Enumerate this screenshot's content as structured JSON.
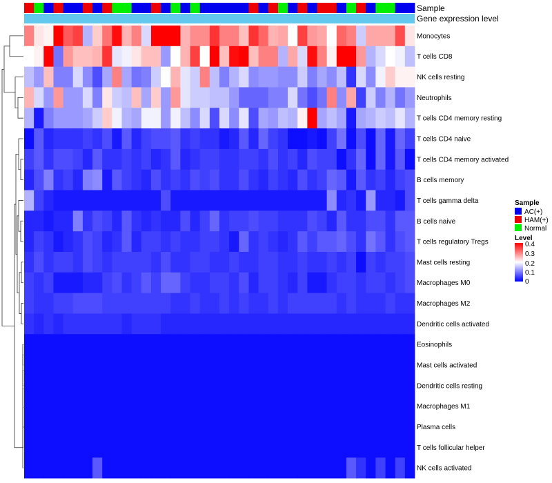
{
  "chart_data": {
    "type": "heatmap",
    "title": "",
    "annotation_labels": [
      "Sample",
      "Gene expression level"
    ],
    "sample_groups": [
      {
        "name": "AC(+)",
        "color": "#0000ee"
      },
      {
        "name": "HAM(+)",
        "color": "#ee0000"
      },
      {
        "name": "Normal",
        "color": "#00ee00"
      }
    ],
    "sample_annotation": [
      1,
      2,
      0,
      1,
      0,
      0,
      1,
      0,
      1,
      2,
      2,
      0,
      0,
      1,
      0,
      2,
      0,
      2,
      0,
      0,
      0,
      0,
      0,
      1,
      0,
      1,
      2,
      0,
      1,
      0,
      1,
      1,
      0,
      2,
      1,
      0,
      2,
      2,
      0,
      0
    ],
    "expression_bar_color": "#63c8ee",
    "rows": [
      "Monocytes",
      "T cells CD8",
      "NK cells resting",
      "Neutrophils",
      "T cells CD4 memory resting",
      "T cells CD4 naive",
      "T cells CD4 memory activated",
      "B cells memory",
      "T cells gamma delta",
      "B cells naive",
      "T cells regulatory  Tregs",
      "Mast cells resting",
      "Macrophages M0",
      "Macrophages M2",
      "Dendritic cells activated",
      "Eosinophils",
      "Mast cells activated",
      "Dendritic cells resting",
      "Macrophages M1",
      "Plasma cells",
      "T cells follicular helper",
      "NK cells activated"
    ],
    "values": [
      [
        0.3,
        0.22,
        0.21,
        0.41,
        0.33,
        0.35,
        0.14,
        0.24,
        0.31,
        0.39,
        0.26,
        0.3,
        0.17,
        0.4,
        0.41,
        0.41,
        0.26,
        0.29,
        0.29,
        0.36,
        0.3,
        0.3,
        0.25,
        0.36,
        0.32,
        0.26,
        0.27,
        0.2,
        0.35,
        0.28,
        0.27,
        0.2,
        0.32,
        0.3,
        0.16,
        0.27,
        0.27,
        0.27,
        0.34,
        0.22
      ],
      [
        0.2,
        0.21,
        0.41,
        0.09,
        0.28,
        0.25,
        0.25,
        0.26,
        0.36,
        0.18,
        0.19,
        0.22,
        0.25,
        0.25,
        0.12,
        0.2,
        0.26,
        0.35,
        0.2,
        0.42,
        0.25,
        0.39,
        0.41,
        0.25,
        0.3,
        0.3,
        0.14,
        0.27,
        0.17,
        0.39,
        0.3,
        0.21,
        0.4,
        0.4,
        0.28,
        0.14,
        0.17,
        0.2,
        0.19,
        0.15
      ],
      [
        0.15,
        0.12,
        0.25,
        0.1,
        0.1,
        0.17,
        0.11,
        0.06,
        0.13,
        0.3,
        0.13,
        0.09,
        0.1,
        0.16,
        0.2,
        0.26,
        0.18,
        0.16,
        0.3,
        0.15,
        0.1,
        0.14,
        0.17,
        0.11,
        0.12,
        0.12,
        0.11,
        0.11,
        0.16,
        0.1,
        0.13,
        0.11,
        0.15,
        0.04,
        0.17,
        0.11,
        0.19,
        0.24,
        0.21,
        0.21
      ],
      [
        0.26,
        0.17,
        0.12,
        0.28,
        0.12,
        0.12,
        0.17,
        0.1,
        0.22,
        0.16,
        0.15,
        0.25,
        0.13,
        0.24,
        0.12,
        0.28,
        0.18,
        0.16,
        0.16,
        0.15,
        0.15,
        0.12,
        0.08,
        0.08,
        0.08,
        0.1,
        0.1,
        0.17,
        0.09,
        0.06,
        0.09,
        0.3,
        0.11,
        0.27,
        0.05,
        0.16,
        0.1,
        0.14,
        0.09,
        0.12
      ],
      [
        0.14,
        0.02,
        0.1,
        0.12,
        0.12,
        0.12,
        0.13,
        0.16,
        0.24,
        0.19,
        0.14,
        0.13,
        0.19,
        0.19,
        0.12,
        0.19,
        0.15,
        0.11,
        0.17,
        0.06,
        0.17,
        0.11,
        0.18,
        0.06,
        0.13,
        0.12,
        0.15,
        0.14,
        0.21,
        0.4,
        0.13,
        0.15,
        0.13,
        0.02,
        0.13,
        0.14,
        0.16,
        0.15,
        0.18,
        0.14
      ],
      [
        0.01,
        0.07,
        0.03,
        0.04,
        0.04,
        0.04,
        0.05,
        0.04,
        0.06,
        0.02,
        0.07,
        0.03,
        0.05,
        0.06,
        0.06,
        0.07,
        0.04,
        0.05,
        0.04,
        0.04,
        0.02,
        0.03,
        0.07,
        0.03,
        0.08,
        0.05,
        0.04,
        0.01,
        0.01,
        0.02,
        0.01,
        0.05,
        0.09,
        0.01,
        0.06,
        0.01,
        0.08,
        0.02,
        0.08,
        0.05
      ],
      [
        0.05,
        0.07,
        0.04,
        0.06,
        0.06,
        0.05,
        0.03,
        0.07,
        0.04,
        0.04,
        0.05,
        0.04,
        0.05,
        0.03,
        0.04,
        0.07,
        0.03,
        0.04,
        0.05,
        0.05,
        0.04,
        0.04,
        0.05,
        0.05,
        0.04,
        0.06,
        0.04,
        0.05,
        0.03,
        0.06,
        0.05,
        0.05,
        0.01,
        0.04,
        0.08,
        0.01,
        0.08,
        0.02,
        0.07,
        0.01
      ],
      [
        0.03,
        0.06,
        0.1,
        0.04,
        0.05,
        0.03,
        0.1,
        0.11,
        0.02,
        0.07,
        0.05,
        0.04,
        0.03,
        0.06,
        0.04,
        0.05,
        0.04,
        0.06,
        0.05,
        0.06,
        0.04,
        0.04,
        0.06,
        0.04,
        0.03,
        0.05,
        0.04,
        0.03,
        0.06,
        0.04,
        0.05,
        0.08,
        0.07,
        0.02,
        0.07,
        0.04,
        0.05,
        0.03,
        0.05,
        0.06
      ],
      [
        0.14,
        0.05,
        0.03,
        0.02,
        0.02,
        0.02,
        0.02,
        0.02,
        0.02,
        0.02,
        0.02,
        0.02,
        0.02,
        0.02,
        0.06,
        0.02,
        0.02,
        0.02,
        0.02,
        0.02,
        0.02,
        0.02,
        0.02,
        0.02,
        0.02,
        0.02,
        0.02,
        0.02,
        0.02,
        0.02,
        0.02,
        0.11,
        0.03,
        0.04,
        0.02,
        0.12,
        0.03,
        0.03,
        0.02,
        0.06
      ],
      [
        0.03,
        0.03,
        0.02,
        0.03,
        0.03,
        0.1,
        0.04,
        0.06,
        0.05,
        0.03,
        0.07,
        0.04,
        0.03,
        0.04,
        0.03,
        0.03,
        0.06,
        0.03,
        0.05,
        0.08,
        0.04,
        0.05,
        0.05,
        0.06,
        0.05,
        0.05,
        0.04,
        0.04,
        0.04,
        0.06,
        0.05,
        0.03,
        0.07,
        0.04,
        0.04,
        0.06,
        0.06,
        0.04,
        0.07,
        0.07
      ],
      [
        0.03,
        0.05,
        0.04,
        0.02,
        0.03,
        0.04,
        0.06,
        0.05,
        0.03,
        0.04,
        0.07,
        0.03,
        0.05,
        0.05,
        0.04,
        0.05,
        0.04,
        0.04,
        0.05,
        0.05,
        0.04,
        0.02,
        0.08,
        0.04,
        0.05,
        0.04,
        0.03,
        0.04,
        0.07,
        0.05,
        0.07,
        0.07,
        0.08,
        0.06,
        0.04,
        0.09,
        0.07,
        0.04,
        0.06,
        0.07
      ],
      [
        0.04,
        0.06,
        0.04,
        0.05,
        0.05,
        0.04,
        0.06,
        0.05,
        0.04,
        0.05,
        0.05,
        0.05,
        0.05,
        0.04,
        0.06,
        0.04,
        0.04,
        0.05,
        0.05,
        0.04,
        0.04,
        0.05,
        0.04,
        0.04,
        0.05,
        0.05,
        0.04,
        0.04,
        0.05,
        0.04,
        0.04,
        0.05,
        0.04,
        0.05,
        0.01,
        0.05,
        0.04,
        0.05,
        0.05,
        0.06
      ],
      [
        0.05,
        0.04,
        0.05,
        0.02,
        0.02,
        0.02,
        0.03,
        0.03,
        0.05,
        0.06,
        0.04,
        0.05,
        0.07,
        0.05,
        0.08,
        0.08,
        0.05,
        0.04,
        0.04,
        0.05,
        0.05,
        0.04,
        0.06,
        0.03,
        0.05,
        0.05,
        0.04,
        0.03,
        0.05,
        0.02,
        0.02,
        0.04,
        0.05,
        0.05,
        0.04,
        0.05,
        0.05,
        0.04,
        0.05,
        0.06
      ],
      [
        0.05,
        0.04,
        0.04,
        0.05,
        0.05,
        0.06,
        0.06,
        0.06,
        0.05,
        0.05,
        0.05,
        0.05,
        0.05,
        0.05,
        0.05,
        0.04,
        0.04,
        0.05,
        0.04,
        0.04,
        0.05,
        0.04,
        0.05,
        0.04,
        0.04,
        0.05,
        0.04,
        0.05,
        0.05,
        0.05,
        0.05,
        0.05,
        0.04,
        0.05,
        0.04,
        0.04,
        0.04,
        0.05,
        0.04,
        0.04
      ],
      [
        0.04,
        0.03,
        0.04,
        0.03,
        0.04,
        0.04,
        0.04,
        0.04,
        0.04,
        0.04,
        0.03,
        0.04,
        0.04,
        0.04,
        0.03,
        0.03,
        0.03,
        0.03,
        0.03,
        0.03,
        0.03,
        0.03,
        0.03,
        0.03,
        0.03,
        0.03,
        0.03,
        0.03,
        0.03,
        0.03,
        0.03,
        0.03,
        0.03,
        0.03,
        0.03,
        0.03,
        0.03,
        0.03,
        0.03,
        0.03
      ],
      [
        0.01,
        0.01,
        0.01,
        0.01,
        0.01,
        0.01,
        0.01,
        0.01,
        0.01,
        0.01,
        0.01,
        0.01,
        0.01,
        0.01,
        0.01,
        0.01,
        0.01,
        0.01,
        0.01,
        0.01,
        0.01,
        0.01,
        0.01,
        0.01,
        0.01,
        0.01,
        0.01,
        0.01,
        0.01,
        0.01,
        0.01,
        0.01,
        0.01,
        0.01,
        0.01,
        0.01,
        0.01,
        0.01,
        0.01,
        0.01
      ],
      [
        0.01,
        0.01,
        0.01,
        0.01,
        0.01,
        0.01,
        0.01,
        0.01,
        0.01,
        0.01,
        0.01,
        0.01,
        0.01,
        0.01,
        0.01,
        0.01,
        0.01,
        0.01,
        0.01,
        0.01,
        0.01,
        0.01,
        0.01,
        0.01,
        0.01,
        0.01,
        0.01,
        0.01,
        0.01,
        0.01,
        0.01,
        0.01,
        0.01,
        0.01,
        0.01,
        0.01,
        0.01,
        0.01,
        0.01,
        0.01
      ],
      [
        0.01,
        0.01,
        0.01,
        0.01,
        0.01,
        0.01,
        0.01,
        0.01,
        0.01,
        0.01,
        0.01,
        0.01,
        0.01,
        0.01,
        0.01,
        0.01,
        0.01,
        0.01,
        0.01,
        0.01,
        0.01,
        0.01,
        0.01,
        0.01,
        0.01,
        0.01,
        0.01,
        0.01,
        0.01,
        0.01,
        0.01,
        0.01,
        0.01,
        0.01,
        0.01,
        0.01,
        0.01,
        0.01,
        0.01,
        0.01
      ],
      [
        0.01,
        0.01,
        0.01,
        0.01,
        0.01,
        0.01,
        0.01,
        0.01,
        0.01,
        0.01,
        0.01,
        0.01,
        0.01,
        0.01,
        0.01,
        0.01,
        0.01,
        0.01,
        0.01,
        0.01,
        0.01,
        0.01,
        0.01,
        0.01,
        0.01,
        0.01,
        0.01,
        0.01,
        0.01,
        0.01,
        0.01,
        0.01,
        0.01,
        0.01,
        0.01,
        0.01,
        0.01,
        0.01,
        0.01,
        0.01
      ],
      [
        0.01,
        0.01,
        0.01,
        0.01,
        0.01,
        0.01,
        0.01,
        0.01,
        0.01,
        0.01,
        0.01,
        0.01,
        0.01,
        0.01,
        0.01,
        0.01,
        0.01,
        0.01,
        0.01,
        0.01,
        0.01,
        0.01,
        0.01,
        0.01,
        0.01,
        0.01,
        0.01,
        0.01,
        0.01,
        0.01,
        0.01,
        0.01,
        0.01,
        0.01,
        0.01,
        0.01,
        0.01,
        0.01,
        0.01,
        0.01
      ],
      [
        0.01,
        0.01,
        0.01,
        0.01,
        0.01,
        0.01,
        0.01,
        0.01,
        0.01,
        0.01,
        0.01,
        0.01,
        0.01,
        0.01,
        0.01,
        0.01,
        0.01,
        0.01,
        0.01,
        0.01,
        0.01,
        0.01,
        0.01,
        0.01,
        0.01,
        0.01,
        0.01,
        0.01,
        0.01,
        0.01,
        0.01,
        0.01,
        0.01,
        0.01,
        0.01,
        0.01,
        0.01,
        0.01,
        0.01,
        0.01
      ],
      [
        0.01,
        0.01,
        0.01,
        0.01,
        0.01,
        0.01,
        0.01,
        0.07,
        0.01,
        0.01,
        0.01,
        0.01,
        0.01,
        0.01,
        0.01,
        0.01,
        0.01,
        0.01,
        0.01,
        0.01,
        0.01,
        0.01,
        0.01,
        0.01,
        0.01,
        0.01,
        0.01,
        0.01,
        0.01,
        0.01,
        0.01,
        0.01,
        0.01,
        0.07,
        0.04,
        0.01,
        0.05,
        0.01,
        0.05,
        0.01
      ]
    ],
    "color_scale": {
      "min": 0,
      "max": 0.4,
      "low": "#0000ff",
      "mid": "#ffffff",
      "high": "#ff0000",
      "mid_value": 0.2
    },
    "legend": {
      "sample_title": "Sample",
      "level_title": "Level",
      "level_ticks": [
        "0.4",
        "0.3",
        "0.2",
        "0.1",
        "0"
      ],
      "placement": "right"
    },
    "row_dendrogram": true
  }
}
